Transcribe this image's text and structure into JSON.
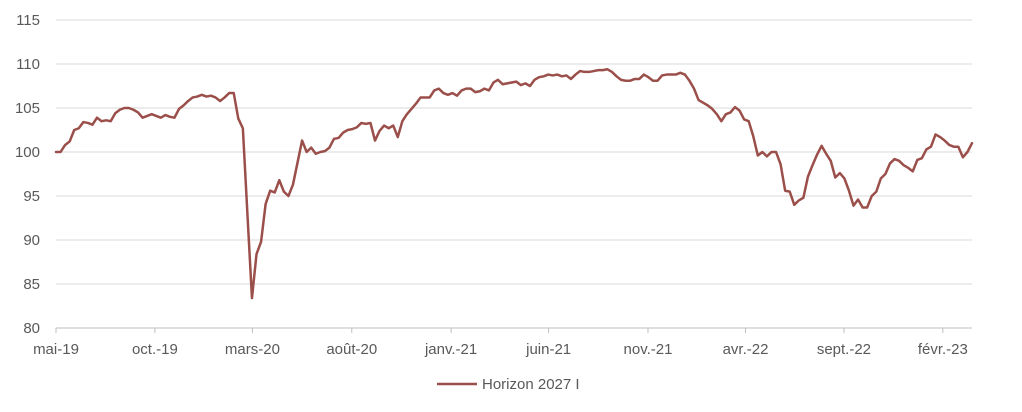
{
  "chart_data": {
    "type": "line",
    "title": "",
    "xlabel": "",
    "ylabel": "",
    "ylim": [
      80,
      115
    ],
    "yticks": [
      80,
      85,
      90,
      95,
      100,
      105,
      110,
      115
    ],
    "xlim": [
      0,
      198
    ],
    "xticks": [
      {
        "x": 0,
        "label": "mai-19"
      },
      {
        "x": 21.7,
        "label": "oct.-19"
      },
      {
        "x": 43.1,
        "label": "mars-20"
      },
      {
        "x": 64.9,
        "label": "août-20"
      },
      {
        "x": 86.7,
        "label": "janv.-21"
      },
      {
        "x": 108.1,
        "label": "juin-21"
      },
      {
        "x": 129.9,
        "label": "nov.-21"
      },
      {
        "x": 151.3,
        "label": "avr.-22"
      },
      {
        "x": 172.9,
        "label": "sept.-22"
      },
      {
        "x": 194.6,
        "label": "févr.-23"
      }
    ],
    "grid": "horizontal",
    "legend": "bottom",
    "series": [
      {
        "name": "Horizon 2027 I",
        "color": "#9B4F4A",
        "points": [
          [
            0,
            100.0
          ],
          [
            1,
            100.0
          ],
          [
            2,
            100.8
          ],
          [
            3,
            101.2
          ],
          [
            4,
            102.5
          ],
          [
            5,
            102.7
          ],
          [
            6,
            103.4
          ],
          [
            7,
            103.3
          ],
          [
            8,
            103.1
          ],
          [
            9,
            103.9
          ],
          [
            10,
            103.5
          ],
          [
            11,
            103.6
          ],
          [
            12,
            103.5
          ],
          [
            13,
            104.4
          ],
          [
            14,
            104.8
          ],
          [
            15,
            105.0
          ],
          [
            16,
            105.0
          ],
          [
            17,
            104.8
          ],
          [
            18,
            104.5
          ],
          [
            19,
            103.9
          ],
          [
            20,
            104.1
          ],
          [
            21,
            104.3
          ],
          [
            22,
            104.1
          ],
          [
            23,
            103.9
          ],
          [
            24,
            104.2
          ],
          [
            25,
            104.0
          ],
          [
            26,
            103.9
          ],
          [
            27,
            104.9
          ],
          [
            28,
            105.3
          ],
          [
            29,
            105.8
          ],
          [
            30,
            106.2
          ],
          [
            31,
            106.3
          ],
          [
            32,
            106.5
          ],
          [
            33,
            106.3
          ],
          [
            34,
            106.4
          ],
          [
            35,
            106.2
          ],
          [
            36,
            105.8
          ],
          [
            37,
            106.2
          ],
          [
            38,
            106.7
          ],
          [
            39,
            106.7
          ],
          [
            40,
            103.8
          ],
          [
            41,
            102.7
          ],
          [
            42,
            93.0
          ],
          [
            43,
            83.4
          ],
          [
            44,
            88.4
          ],
          [
            45,
            89.8
          ],
          [
            46,
            94.1
          ],
          [
            47,
            95.6
          ],
          [
            48,
            95.4
          ],
          [
            49,
            96.8
          ],
          [
            50,
            95.5
          ],
          [
            51,
            95.0
          ],
          [
            52,
            96.3
          ],
          [
            53,
            98.8
          ],
          [
            54,
            101.3
          ],
          [
            55,
            100.0
          ],
          [
            56,
            100.5
          ],
          [
            57,
            99.8
          ],
          [
            58,
            100.0
          ],
          [
            59,
            100.1
          ],
          [
            60,
            100.5
          ],
          [
            61,
            101.5
          ],
          [
            62,
            101.6
          ],
          [
            63,
            102.2
          ],
          [
            64,
            102.5
          ],
          [
            65,
            102.6
          ],
          [
            66,
            102.8
          ],
          [
            67,
            103.3
          ],
          [
            68,
            103.2
          ],
          [
            69,
            103.3
          ],
          [
            70,
            101.3
          ],
          [
            71,
            102.4
          ],
          [
            72,
            103.0
          ],
          [
            73,
            102.7
          ],
          [
            74,
            103.0
          ],
          [
            75,
            101.7
          ],
          [
            76,
            103.5
          ],
          [
            77,
            104.3
          ],
          [
            78,
            104.9
          ],
          [
            79,
            105.5
          ],
          [
            80,
            106.2
          ],
          [
            81,
            106.2
          ],
          [
            82,
            106.2
          ],
          [
            83,
            107.0
          ],
          [
            84,
            107.2
          ],
          [
            85,
            106.7
          ],
          [
            86,
            106.5
          ],
          [
            87,
            106.7
          ],
          [
            88,
            106.4
          ],
          [
            89,
            107.0
          ],
          [
            90,
            107.2
          ],
          [
            91,
            107.2
          ],
          [
            92,
            106.8
          ],
          [
            93,
            106.9
          ],
          [
            94,
            107.2
          ],
          [
            95,
            107.0
          ],
          [
            96,
            107.9
          ],
          [
            97,
            108.2
          ],
          [
            98,
            107.7
          ],
          [
            99,
            107.8
          ],
          [
            100,
            107.9
          ],
          [
            101,
            108.0
          ],
          [
            102,
            107.6
          ],
          [
            103,
            107.8
          ],
          [
            104,
            107.5
          ],
          [
            105,
            108.2
          ],
          [
            106,
            108.5
          ],
          [
            107,
            108.6
          ],
          [
            108,
            108.8
          ],
          [
            109,
            108.7
          ],
          [
            110,
            108.8
          ],
          [
            111,
            108.6
          ],
          [
            112,
            108.7
          ],
          [
            113,
            108.3
          ],
          [
            114,
            108.8
          ],
          [
            115,
            109.2
          ],
          [
            116,
            109.1
          ],
          [
            117,
            109.1
          ],
          [
            118,
            109.2
          ],
          [
            119,
            109.3
          ],
          [
            120,
            109.3
          ],
          [
            121,
            109.4
          ],
          [
            122,
            109.1
          ],
          [
            123,
            108.6
          ],
          [
            124,
            108.2
          ],
          [
            125,
            108.1
          ],
          [
            126,
            108.1
          ],
          [
            127,
            108.3
          ],
          [
            128,
            108.3
          ],
          [
            129,
            108.8
          ],
          [
            130,
            108.5
          ],
          [
            131,
            108.1
          ],
          [
            132,
            108.1
          ],
          [
            133,
            108.7
          ],
          [
            134,
            108.8
          ],
          [
            135,
            108.8
          ],
          [
            136,
            108.8
          ],
          [
            137,
            109.0
          ],
          [
            138,
            108.8
          ],
          [
            139,
            108.1
          ],
          [
            140,
            107.2
          ],
          [
            141,
            105.9
          ],
          [
            142,
            105.6
          ],
          [
            143,
            105.3
          ],
          [
            144,
            104.9
          ],
          [
            145,
            104.3
          ],
          [
            146,
            103.5
          ],
          [
            147,
            104.3
          ],
          [
            148,
            104.5
          ],
          [
            149,
            105.1
          ],
          [
            150,
            104.7
          ],
          [
            151,
            103.7
          ],
          [
            152,
            103.5
          ],
          [
            153,
            101.8
          ],
          [
            154,
            99.6
          ],
          [
            155,
            100.0
          ],
          [
            156,
            99.5
          ],
          [
            157,
            100.0
          ],
          [
            158,
            100.0
          ],
          [
            159,
            98.6
          ],
          [
            160,
            95.6
          ],
          [
            161,
            95.5
          ],
          [
            162,
            94.0
          ],
          [
            163,
            94.5
          ],
          [
            164,
            94.8
          ],
          [
            165,
            97.2
          ],
          [
            166,
            98.5
          ],
          [
            167,
            99.7
          ],
          [
            168,
            100.7
          ],
          [
            169,
            99.8
          ],
          [
            170,
            99.0
          ],
          [
            171,
            97.1
          ],
          [
            172,
            97.6
          ],
          [
            173,
            97.0
          ],
          [
            174,
            95.6
          ],
          [
            175,
            93.9
          ],
          [
            176,
            94.6
          ],
          [
            177,
            93.7
          ],
          [
            178,
            93.7
          ],
          [
            179,
            95.0
          ],
          [
            180,
            95.5
          ],
          [
            181,
            97.0
          ],
          [
            182,
            97.5
          ],
          [
            183,
            98.7
          ],
          [
            184,
            99.2
          ],
          [
            185,
            99.0
          ],
          [
            186,
            98.5
          ],
          [
            187,
            98.2
          ],
          [
            188,
            97.8
          ],
          [
            189,
            99.1
          ],
          [
            190,
            99.3
          ],
          [
            191,
            100.3
          ],
          [
            192,
            100.6
          ],
          [
            193,
            102.0
          ],
          [
            194,
            101.7
          ],
          [
            195,
            101.3
          ],
          [
            196,
            100.8
          ],
          [
            197,
            100.6
          ],
          [
            198,
            100.6
          ],
          [
            199,
            99.4
          ],
          [
            200,
            100.0
          ],
          [
            201,
            101.0
          ]
        ]
      }
    ]
  }
}
